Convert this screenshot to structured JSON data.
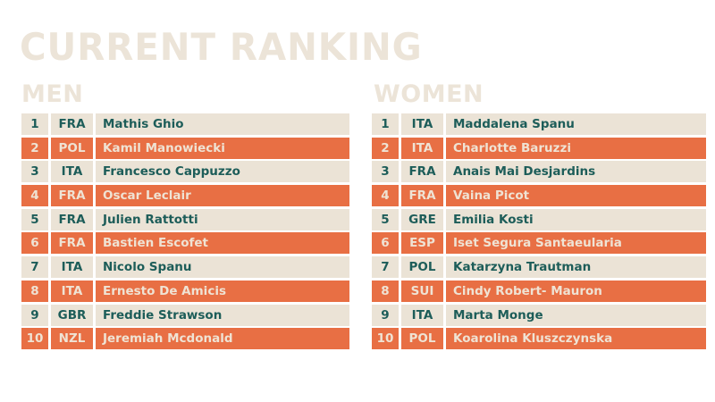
{
  "title": "CURRENT RANKING",
  "men": {
    "label": "MEN",
    "rows": [
      {
        "rank": "1",
        "country": "FRA",
        "name": "Mathis Ghio"
      },
      {
        "rank": "2",
        "country": "POL",
        "name": "Kamil Manowiecki"
      },
      {
        "rank": "3",
        "country": "ITA",
        "name": "Francesco Cappuzzo"
      },
      {
        "rank": "4",
        "country": "FRA",
        "name": "Oscar Leclair"
      },
      {
        "rank": "5",
        "country": "FRA",
        "name": "Julien Rattotti"
      },
      {
        "rank": "6",
        "country": "FRA",
        "name": "Bastien Escofet"
      },
      {
        "rank": "7",
        "country": "ITA",
        "name": "Nicolo Spanu"
      },
      {
        "rank": "8",
        "country": "ITA",
        "name": "Ernesto De Amicis"
      },
      {
        "rank": "9",
        "country": "GBR",
        "name": "Freddie Strawson"
      },
      {
        "rank": "10",
        "country": "NZL",
        "name": "Jeremiah Mcdonald"
      }
    ]
  },
  "women": {
    "label": "WOMEN",
    "rows": [
      {
        "rank": "1",
        "country": "ITA",
        "name": "Maddalena Spanu"
      },
      {
        "rank": "2",
        "country": "ITA",
        "name": "Charlotte Baruzzi"
      },
      {
        "rank": "3",
        "country": "FRA",
        "name": "Anais Mai Desjardins"
      },
      {
        "rank": "4",
        "country": "FRA",
        "name": "Vaina Picot"
      },
      {
        "rank": "5",
        "country": "GRE",
        "name": "Emilia Kosti"
      },
      {
        "rank": "6",
        "country": "ESP",
        "name": "Iset Segura Santaeularia"
      },
      {
        "rank": "7",
        "country": "POL",
        "name": "Katarzyna Trautman"
      },
      {
        "rank": "8",
        "country": "SUI",
        "name": "Cindy Robert- Mauron"
      },
      {
        "rank": "9",
        "country": "ITA",
        "name": "Marta Monge"
      },
      {
        "rank": "10",
        "country": "POL",
        "name": "Koarolina Kluszczynska"
      }
    ]
  },
  "colors": {
    "beige_row": "#ebe3d6",
    "orange_row": "#e86f44",
    "dark_text": "#1d5d59",
    "light_text": "#efe3d4",
    "heading": "#ece4d8"
  }
}
